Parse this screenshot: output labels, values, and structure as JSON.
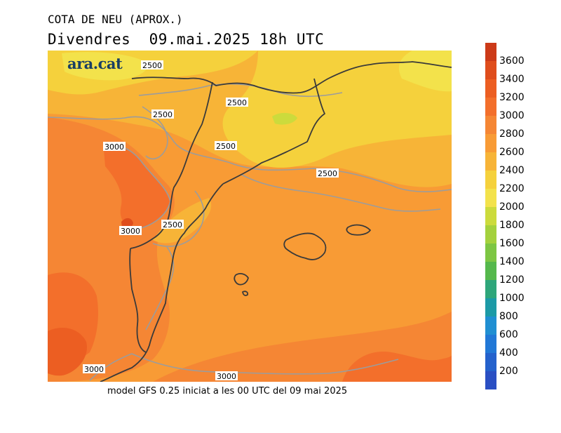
{
  "header": {
    "title": "COTA DE NEU (APROX.)",
    "subtitle": "Divendres  09.mai.2025 18h UTC"
  },
  "footer": {
    "text": "model GFS 0.25 iniciat a les 00 UTC del 09 mai 2025"
  },
  "logo": {
    "text": "ara.cat"
  },
  "map": {
    "contour_labels": [
      "2500",
      "2500",
      "2500",
      "2500",
      "2500",
      "2500",
      "3000",
      "3000",
      "3000",
      "3000"
    ]
  },
  "colorbar": {
    "unit_levels": [
      "3600",
      "3400",
      "3200",
      "3000",
      "2800",
      "2600",
      "2400",
      "2200",
      "2000",
      "1800",
      "1600",
      "1400",
      "1200",
      "1000",
      "800",
      "600",
      "400",
      "200"
    ],
    "colors_top_to_bottom": [
      "#cc3a18",
      "#df4d1c",
      "#ec5e22",
      "#f36f2b",
      "#f58634",
      "#f89b35",
      "#f7b437",
      "#f5d13c",
      "#f3e24b",
      "#ccdb3c",
      "#a4d13d",
      "#7dc643",
      "#55b84c",
      "#2ea67a",
      "#1c9aa6",
      "#208fd2",
      "#2178d6",
      "#2461cc",
      "#2a4fc3"
    ]
  }
}
